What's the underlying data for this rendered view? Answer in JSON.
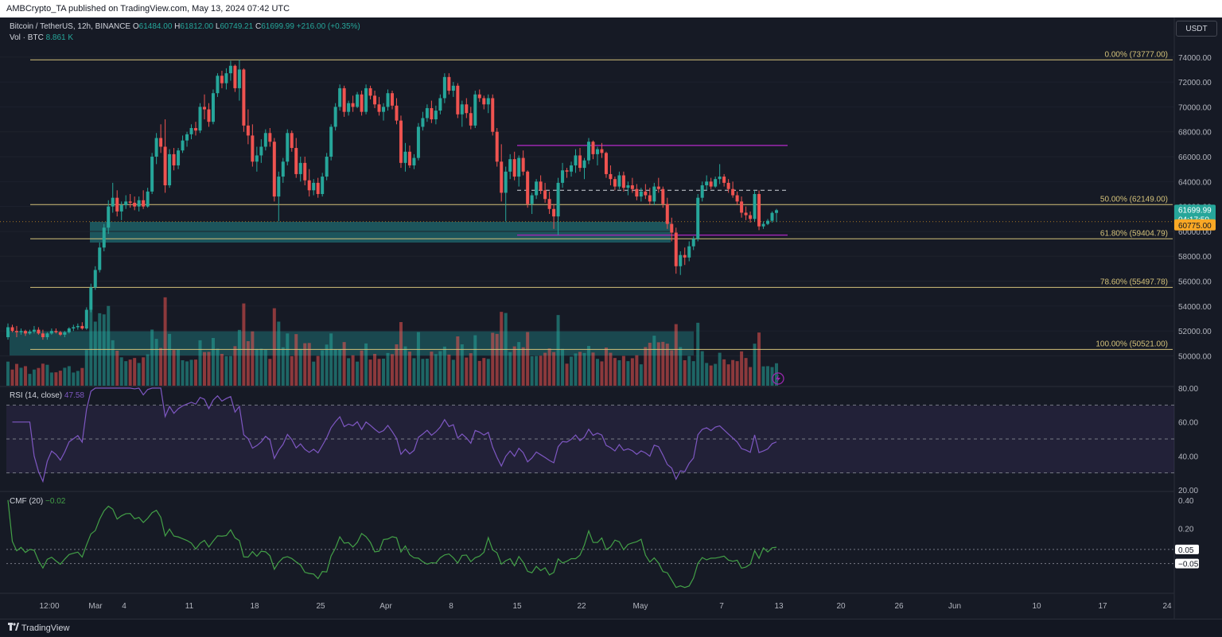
{
  "header": {
    "publisher": "AMBCrypto_TA published on TradingView.com, May 13, 2024 07:42 UTC"
  },
  "symbol": {
    "name": "Bitcoin / TetherUS, 12h, BINANCE",
    "o_label": "O",
    "o": "61484.00",
    "h_label": "H",
    "h": "61812.00",
    "l_label": "L",
    "l": "60749.21",
    "c_label": "C",
    "c": "61699.99",
    "change": "+216.00 (+0.35%)",
    "vol_label": "Vol · BTC",
    "vol": "8.861 K"
  },
  "currency_badge": "USDT",
  "footer": {
    "brand": "TradingView"
  },
  "colors": {
    "bg": "#161a25",
    "up": "#26a69a",
    "down": "#ef5350",
    "fib": "#d4c27a",
    "range": "#9c27b0",
    "rsi": "#7e57c2",
    "cmf": "#43a047",
    "zone": "#1f6f73"
  },
  "chart_data": [
    {
      "type": "candlestick",
      "ylim": [
        49200,
        75200
      ],
      "y_ticks": [
        "74000.00",
        "72000.00",
        "70000.00",
        "68000.00",
        "66000.00",
        "64000.00",
        "62000.00",
        "60000.00",
        "58000.00",
        "56000.00",
        "54000.00",
        "52000.00",
        "50000.00"
      ],
      "x_ticks": [
        "12:00",
        "Mar",
        "4",
        "11",
        "18",
        "25",
        "Apr",
        "8",
        "15",
        "22",
        "May",
        "7",
        "13",
        "20",
        "26",
        "Jun",
        "10",
        "17",
        "24"
      ],
      "fib_levels": [
        {
          "label": "0.00% (73777.00)",
          "value": 73777
        },
        {
          "label": "50.00% (62149.00)",
          "value": 62149
        },
        {
          "label": "61.80% (59404.79)",
          "value": 59404.79
        },
        {
          "label": "78.60% (55497.78)",
          "value": 55497.78
        },
        {
          "label": "100.00% (50521.00)",
          "value": 50521
        }
      ],
      "range_lines": [
        66900,
        63300,
        59700
      ],
      "last_price": "61699.99",
      "countdown": "04:17:50",
      "level_badge": "60775.00",
      "level_value": 60775,
      "candles": [
        [
          51500,
          52600,
          51300,
          52300
        ],
        [
          52300,
          52500,
          51900,
          52000
        ],
        [
          52000,
          52400,
          51500,
          51900
        ],
        [
          51900,
          52200,
          51700,
          52000
        ],
        [
          52000,
          52100,
          51600,
          51800
        ],
        [
          51800,
          52100,
          51700,
          51950
        ],
        [
          51950,
          52400,
          51800,
          52100
        ],
        [
          52100,
          52300,
          51700,
          51800
        ],
        [
          51800,
          52100,
          51300,
          51500
        ],
        [
          51500,
          51900,
          51300,
          51800
        ],
        [
          51800,
          52200,
          51700,
          52000
        ],
        [
          52000,
          52200,
          51800,
          51900
        ],
        [
          51900,
          52000,
          51600,
          51700
        ],
        [
          51700,
          52000,
          51500,
          51900
        ],
        [
          51900,
          52300,
          51800,
          52200
        ],
        [
          52200,
          52500,
          52000,
          52300
        ],
        [
          52300,
          52600,
          52100,
          52400
        ],
        [
          52400,
          52700,
          52100,
          52200
        ],
        [
          52200,
          53900,
          52100,
          53700
        ],
        [
          53700,
          55800,
          53500,
          55500
        ],
        [
          55500,
          57200,
          55300,
          56900
        ],
        [
          56900,
          59100,
          56700,
          58700
        ],
        [
          58700,
          60600,
          58400,
          60300
        ],
        [
          60300,
          62500,
          59800,
          62000
        ],
        [
          62000,
          63900,
          61500,
          62700
        ],
        [
          62700,
          63300,
          61200,
          61600
        ],
        [
          61600,
          62400,
          60900,
          62100
        ],
        [
          62100,
          62900,
          61800,
          62400
        ],
        [
          62400,
          63000,
          61900,
          62300
        ],
        [
          62300,
          62800,
          61700,
          62000
        ],
        [
          62000,
          62800,
          61600,
          62500
        ],
        [
          62500,
          63300,
          61800,
          62000
        ],
        [
          62000,
          63500,
          61900,
          63200
        ],
        [
          63200,
          66300,
          63000,
          66000
        ],
        [
          66000,
          67900,
          65400,
          67500
        ],
        [
          67500,
          68600,
          66300,
          66800
        ],
        [
          66800,
          69000,
          63100,
          63700
        ],
        [
          63700,
          66600,
          63500,
          66200
        ],
        [
          66200,
          66700,
          64900,
          65300
        ],
        [
          65300,
          66700,
          65000,
          66500
        ],
        [
          66500,
          67700,
          66300,
          67300
        ],
        [
          67300,
          68000,
          66800,
          67800
        ],
        [
          67800,
          68600,
          67400,
          68300
        ],
        [
          68300,
          68800,
          67700,
          68100
        ],
        [
          68100,
          70300,
          67900,
          70000
        ],
        [
          70000,
          71000,
          69000,
          69800
        ],
        [
          69800,
          70300,
          68400,
          68800
        ],
        [
          68800,
          71400,
          68600,
          71100
        ],
        [
          71100,
          72700,
          70800,
          72500
        ],
        [
          72500,
          72900,
          71500,
          71900
        ],
        [
          71900,
          73100,
          71400,
          72700
        ],
        [
          72700,
          73700,
          72100,
          73300
        ],
        [
          73300,
          73400,
          71200,
          71500
        ],
        [
          71500,
          73777,
          70500,
          73000
        ],
        [
          73000,
          73100,
          68000,
          68500
        ],
        [
          68500,
          69800,
          67000,
          67700
        ],
        [
          67700,
          68600,
          65200,
          65600
        ],
        [
          65600,
          66800,
          64800,
          66100
        ],
        [
          66100,
          67400,
          65500,
          66800
        ],
        [
          66800,
          68200,
          66500,
          67900
        ],
        [
          67900,
          68300,
          66800,
          67200
        ],
        [
          67200,
          67500,
          62400,
          62800
        ],
        [
          62800,
          64800,
          60800,
          64400
        ],
        [
          64400,
          65900,
          63900,
          65600
        ],
        [
          65600,
          68200,
          65300,
          67900
        ],
        [
          67900,
          68100,
          66400,
          66700
        ],
        [
          66700,
          67500,
          64300,
          64600
        ],
        [
          64600,
          66000,
          64000,
          65500
        ],
        [
          65500,
          66000,
          63700,
          64100
        ],
        [
          64100,
          65000,
          62800,
          63300
        ],
        [
          63300,
          64200,
          62900,
          63900
        ],
        [
          63900,
          64300,
          62700,
          63000
        ],
        [
          63000,
          64700,
          62800,
          64400
        ],
        [
          64400,
          66300,
          64100,
          66000
        ],
        [
          66000,
          68600,
          65700,
          68400
        ],
        [
          68400,
          70300,
          68100,
          70000
        ],
        [
          70000,
          71800,
          69700,
          71500
        ],
        [
          71500,
          71700,
          69200,
          69600
        ],
        [
          69600,
          70500,
          69300,
          70300
        ],
        [
          70300,
          70900,
          69600,
          70000
        ],
        [
          70000,
          71200,
          69900,
          71000
        ],
        [
          71000,
          71300,
          69300,
          69600
        ],
        [
          69600,
          71800,
          69400,
          71500
        ],
        [
          71500,
          71700,
          70600,
          70900
        ],
        [
          70900,
          71300,
          69900,
          70200
        ],
        [
          70200,
          70800,
          69300,
          69600
        ],
        [
          69600,
          70300,
          68900,
          70000
        ],
        [
          70000,
          71400,
          69700,
          71100
        ],
        [
          71100,
          71300,
          69800,
          70100
        ],
        [
          70100,
          70700,
          68600,
          68900
        ],
        [
          68900,
          69300,
          65100,
          65500
        ],
        [
          65500,
          67100,
          64800,
          66400
        ],
        [
          66400,
          66900,
          65100,
          65300
        ],
        [
          65300,
          66200,
          65000,
          65900
        ],
        [
          65900,
          68700,
          65700,
          68400
        ],
        [
          68400,
          69600,
          68100,
          69100
        ],
        [
          69100,
          70200,
          68800,
          69900
        ],
        [
          69900,
          70500,
          68700,
          69000
        ],
        [
          69000,
          70100,
          68600,
          69700
        ],
        [
          69700,
          71000,
          69400,
          70700
        ],
        [
          70700,
          72700,
          70300,
          72400
        ],
        [
          72400,
          72700,
          71000,
          71300
        ],
        [
          71300,
          72000,
          70800,
          71700
        ],
        [
          71700,
          71900,
          69100,
          69400
        ],
        [
          69400,
          70500,
          68400,
          70200
        ],
        [
          70200,
          70700,
          69100,
          69500
        ],
        [
          69500,
          70000,
          68200,
          68500
        ],
        [
          68500,
          71300,
          68300,
          71000
        ],
        [
          71000,
          71400,
          70400,
          70700
        ],
        [
          70700,
          70900,
          69800,
          70200
        ],
        [
          70200,
          71000,
          69500,
          70700
        ],
        [
          70700,
          71000,
          67700,
          68000
        ],
        [
          68000,
          68300,
          65200,
          65600
        ],
        [
          65600,
          67000,
          62400,
          63100
        ],
        [
          63100,
          65200,
          60800,
          64800
        ],
        [
          64800,
          66200,
          64200,
          65800
        ],
        [
          65800,
          66400,
          64100,
          64400
        ],
        [
          64400,
          66100,
          63600,
          65900
        ],
        [
          65900,
          66500,
          64500,
          64800
        ],
        [
          64800,
          64900,
          61900,
          62200
        ],
        [
          62200,
          63100,
          61400,
          62900
        ],
        [
          62900,
          64200,
          62600,
          64000
        ],
        [
          64000,
          64500,
          63000,
          63300
        ],
        [
          63300,
          63900,
          62300,
          62600
        ],
        [
          62600,
          63200,
          61400,
          61800
        ],
        [
          61800,
          62200,
          60200,
          61200
        ],
        [
          61200,
          64300,
          59700,
          63900
        ],
        [
          63900,
          65500,
          63500,
          64900
        ],
        [
          64900,
          65100,
          64300,
          64800
        ],
        [
          64800,
          65600,
          64400,
          65300
        ],
        [
          65300,
          66600,
          64700,
          66100
        ],
        [
          66100,
          66700,
          64800,
          65100
        ],
        [
          65100,
          65900,
          64200,
          65700
        ],
        [
          65700,
          67500,
          65400,
          67200
        ],
        [
          67200,
          67300,
          65800,
          66200
        ],
        [
          66200,
          66800,
          65300,
          66600
        ],
        [
          66600,
          67100,
          65900,
          66300
        ],
        [
          66300,
          66400,
          64300,
          64600
        ],
        [
          64600,
          65300,
          63700,
          64200
        ],
        [
          64200,
          64400,
          63300,
          63600
        ],
        [
          63600,
          64800,
          63400,
          64500
        ],
        [
          64500,
          64800,
          63200,
          63500
        ],
        [
          63500,
          64000,
          62900,
          63700
        ],
        [
          63700,
          64300,
          63100,
          63400
        ],
        [
          63400,
          63800,
          62500,
          62800
        ],
        [
          62800,
          63500,
          62400,
          63200
        ],
        [
          63200,
          63800,
          62600,
          62900
        ],
        [
          62900,
          63500,
          62100,
          62400
        ],
        [
          62400,
          63900,
          62100,
          63600
        ],
        [
          63600,
          64300,
          63100,
          63400
        ],
        [
          63400,
          63600,
          61900,
          62200
        ],
        [
          62200,
          62700,
          60200,
          60600
        ],
        [
          60600,
          61100,
          59200,
          59900
        ],
        [
          59900,
          60300,
          56600,
          57200
        ],
        [
          57200,
          58400,
          56500,
          58100
        ],
        [
          58100,
          58700,
          57300,
          57900
        ],
        [
          57900,
          59200,
          57600,
          58800
        ],
        [
          58800,
          59600,
          58500,
          59400
        ],
        [
          59400,
          63000,
          59200,
          62700
        ],
        [
          62700,
          64000,
          62400,
          63700
        ],
        [
          63700,
          64500,
          63300,
          64000
        ],
        [
          64000,
          64300,
          63400,
          63600
        ],
        [
          63600,
          64400,
          63500,
          64200
        ],
        [
          64200,
          65400,
          63800,
          64400
        ],
        [
          64400,
          64600,
          63600,
          63900
        ],
        [
          63900,
          64200,
          63100,
          63400
        ],
        [
          63400,
          64000,
          62700,
          62900
        ],
        [
          62900,
          63200,
          62100,
          62400
        ],
        [
          62400,
          62800,
          61100,
          61500
        ],
        [
          61500,
          62000,
          60900,
          61300
        ],
        [
          61300,
          61600,
          60700,
          61000
        ],
        [
          61000,
          63300,
          60800,
          63000
        ],
        [
          63000,
          63300,
          60100,
          60400
        ],
        [
          60400,
          60800,
          60200,
          60600
        ],
        [
          60600,
          61000,
          60500,
          60850
        ],
        [
          60850,
          61600,
          60700,
          61484
        ],
        [
          61484,
          61812,
          60749,
          61700
        ]
      ]
    },
    {
      "type": "line",
      "title": "RSI (14, close)",
      "value": "47.58",
      "ylim": [
        20,
        80
      ],
      "y_ticks": [
        "80.00",
        "60.00",
        "40.00",
        "20.00"
      ],
      "bands": [
        70,
        50,
        30
      ]
    },
    {
      "type": "line",
      "title": "CMF (20)",
      "value": "−0.02",
      "ylim": [
        -0.25,
        0.45
      ],
      "y_ticks": [
        "0.40",
        "0.20"
      ],
      "badges": [
        "0.05",
        "−0.05"
      ],
      "band_values": [
        0.05,
        -0.05
      ]
    }
  ]
}
